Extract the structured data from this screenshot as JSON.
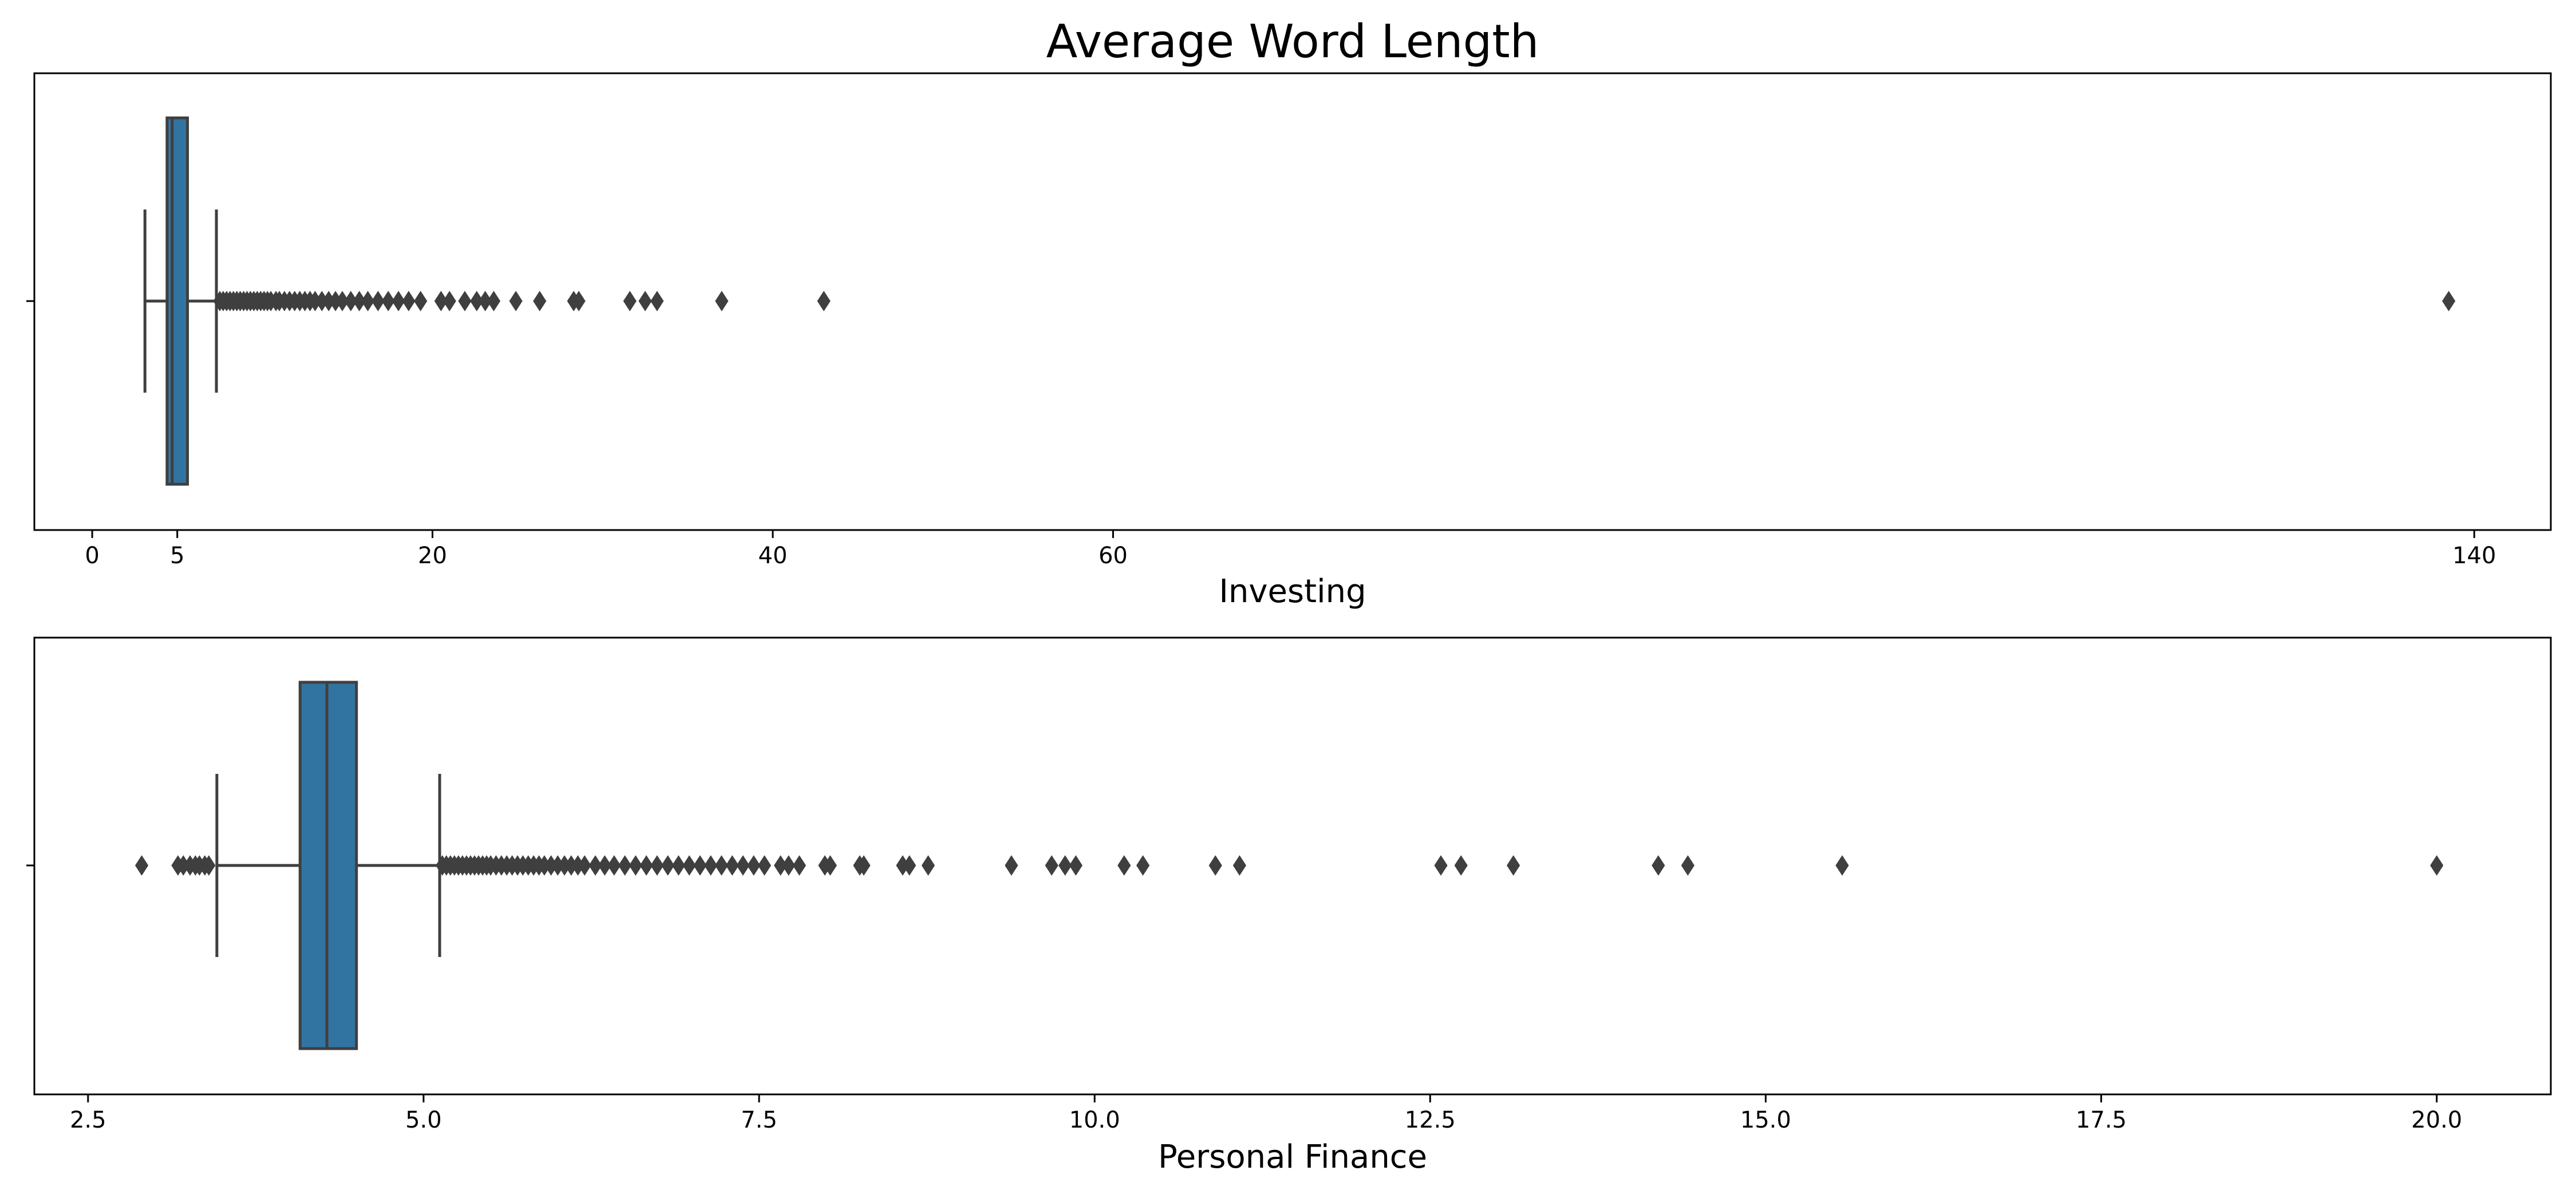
{
  "title": "Average Word Length",
  "chart_data": [
    {
      "type": "box",
      "title": "Average Word Length",
      "xlabel": "Investing",
      "ylabel": "",
      "xlim": [
        -3.4,
        144.5
      ],
      "xticks": [
        0,
        5,
        20,
        40,
        60,
        140
      ],
      "tick_labels": [
        "0",
        "5",
        "20",
        "40",
        "60",
        "140"
      ],
      "grid": false,
      "box": {
        "whisker_low": 3.1,
        "q1": 4.4,
        "median": 4.7,
        "q3": 5.6,
        "whisker_high": 7.3
      },
      "outliers": [
        7.5,
        7.7,
        7.9,
        8.1,
        8.3,
        8.5,
        8.7,
        8.9,
        9.1,
        9.3,
        9.5,
        9.7,
        9.9,
        10.1,
        10.3,
        10.5,
        10.8,
        11.0,
        11.3,
        11.6,
        11.9,
        12.2,
        12.5,
        12.8,
        13.1,
        13.5,
        13.9,
        14.3,
        14.7,
        15.2,
        15.7,
        16.2,
        16.8,
        17.4,
        18.0,
        18.6,
        19.3,
        20.5,
        21.0,
        21.9,
        22.6,
        23.1,
        23.6,
        24.9,
        26.3,
        28.3,
        28.6,
        31.6,
        32.5,
        33.2,
        37.0,
        43.0,
        138.5
      ],
      "color": "#3274a1"
    },
    {
      "type": "box",
      "xlabel": "Personal Finance",
      "ylabel": "",
      "xlim": [
        2.1,
        20.85
      ],
      "xticks": [
        2.5,
        5.0,
        7.5,
        10.0,
        12.5,
        15.0,
        17.5,
        20.0
      ],
      "tick_labels": [
        "2.5",
        "5.0",
        "7.5",
        "10.0",
        "12.5",
        "15.0",
        "17.5",
        "20.0"
      ],
      "grid": false,
      "box": {
        "whisker_low": 3.46,
        "q1": 4.08,
        "median": 4.28,
        "q3": 4.5,
        "whisker_high": 5.12
      },
      "outliers": [
        2.9,
        3.17,
        3.21,
        3.26,
        3.3,
        3.33,
        3.37,
        3.4,
        5.14,
        5.17,
        5.2,
        5.23,
        5.26,
        5.29,
        5.32,
        5.35,
        5.38,
        5.41,
        5.44,
        5.47,
        5.5,
        5.54,
        5.58,
        5.62,
        5.66,
        5.7,
        5.74,
        5.78,
        5.82,
        5.86,
        5.9,
        5.95,
        6.0,
        6.05,
        6.1,
        6.15,
        6.2,
        6.28,
        6.35,
        6.42,
        6.5,
        6.58,
        6.66,
        6.74,
        6.82,
        6.9,
        6.98,
        7.06,
        7.14,
        7.22,
        7.3,
        7.38,
        7.46,
        7.54,
        7.66,
        7.72,
        7.8,
        7.99,
        8.03,
        8.25,
        8.28,
        8.57,
        8.62,
        8.76,
        9.38,
        9.68,
        9.78,
        9.86,
        10.22,
        10.36,
        10.9,
        11.08,
        12.58,
        12.73,
        13.12,
        14.2,
        14.42,
        15.57,
        20.0
      ],
      "color": "#3274a1"
    }
  ]
}
